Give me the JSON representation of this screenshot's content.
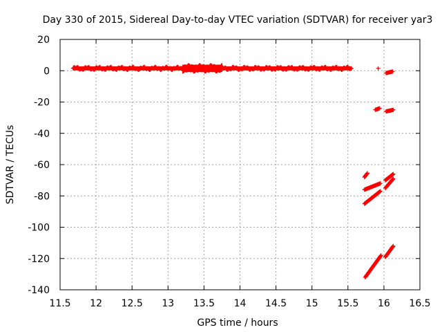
{
  "chart_data": {
    "type": "scatter",
    "title": "Day 330 of 2015, Sidereal Day-to-day VTEC variation (SDTVAR) for receiver yar3",
    "xlabel": "GPS time / hours",
    "ylabel": "SDTVAR / TECUs",
    "xlim": [
      11.5,
      16.5
    ],
    "ylim": [
      -140,
      20
    ],
    "x_ticks": [
      11.5,
      12,
      12.5,
      13,
      13.5,
      14,
      14.5,
      15,
      15.5,
      16,
      16.5
    ],
    "x_tick_labels": [
      "11.5",
      "12",
      "12.5",
      "13",
      "13.5",
      "14",
      "14.5",
      "15",
      "15.5",
      "16",
      "16.5"
    ],
    "y_ticks": [
      20,
      0,
      -20,
      -40,
      -60,
      -80,
      -100,
      -120,
      -140
    ],
    "y_tick_labels": [
      "20",
      "0",
      "-20",
      "-40",
      "-60",
      "-80",
      "-100",
      "-120",
      "-140"
    ],
    "grid": true,
    "marker": "+",
    "colors": {
      "series": "#ff0000",
      "grid": "#a0a0a0",
      "axes": "#000000"
    },
    "series": [
      {
        "name": "near-zero band",
        "x_start": 11.68,
        "x_end": 15.55,
        "y": 1.5,
        "spread": 2.2
      },
      {
        "name": "isolated point",
        "points": [
          [
            15.92,
            1.5
          ]
        ]
      },
      {
        "name": "segment near 0",
        "x_start": 16.03,
        "x_end": 16.12,
        "y_start": -1.5,
        "y_end": -0.5
      },
      {
        "name": "segment near -24 (a)",
        "x_start": 15.88,
        "x_end": 15.94,
        "y_start": -25,
        "y_end": -24
      },
      {
        "name": "segment near -25 (b)",
        "x_start": 16.03,
        "x_end": 16.13,
        "y_start": -26,
        "y_end": -25
      },
      {
        "name": "segment near -67",
        "x_start": 15.73,
        "x_end": 15.77,
        "y_start": -68,
        "y_end": -65.5
      },
      {
        "name": "segment -76 to -72",
        "x_start": 15.73,
        "x_end": 15.95,
        "y_start": -76,
        "y_end": -72
      },
      {
        "name": "segment -70 to -66",
        "x_start": 16.02,
        "x_end": 16.13,
        "y_start": -70,
        "y_end": -66
      },
      {
        "name": "segment -85 to -77",
        "x_start": 15.73,
        "x_end": 15.95,
        "y_start": -85,
        "y_end": -77
      },
      {
        "name": "segment -75 to -69",
        "x_start": 16.02,
        "x_end": 16.13,
        "y_start": -75,
        "y_end": -69
      },
      {
        "name": "segment -132 to -118",
        "x_start": 15.74,
        "x_end": 15.96,
        "y_start": -132,
        "y_end": -118
      },
      {
        "name": "segment -119 to -112",
        "x_start": 16.02,
        "x_end": 16.13,
        "y_start": -119,
        "y_end": -112
      }
    ]
  }
}
